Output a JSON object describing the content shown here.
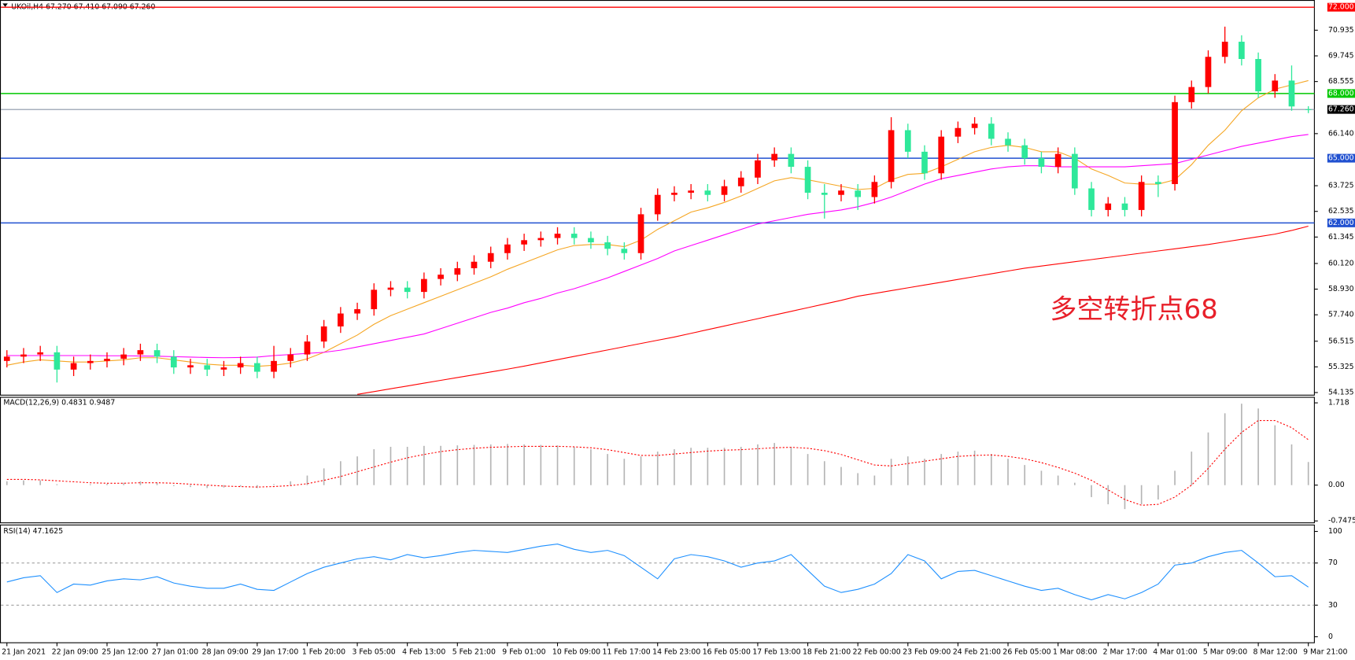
{
  "chart_data": [
    {
      "type": "candlestick",
      "title": "UKOil,H4  67.270 67.410 67.090 67.260",
      "categories": [
        "21 Jan 2021",
        null,
        null,
        "22 Jan 09:00",
        null,
        null,
        "25 Jan 12:00",
        null,
        null,
        "27 Jan 01:00",
        null,
        null,
        "28 Jan 09:00",
        null,
        null,
        "29 Jan 17:00",
        null,
        null,
        "1 Feb 20:00",
        null,
        null,
        "3 Feb 05:00",
        null,
        null,
        "4 Feb 13:00",
        null,
        null,
        "5 Feb 21:00",
        null,
        null,
        "9 Feb 01:00",
        null,
        null,
        "10 Feb 09:00",
        null,
        null,
        "11 Feb 17:00",
        null,
        null,
        "14 Feb 23:00",
        null,
        null,
        "16 Feb 05:00",
        null,
        null,
        "17 Feb 13:00",
        null,
        null,
        "18 Feb 21:00",
        null,
        null,
        "22 Feb 00:00",
        null,
        null,
        "23 Feb 09:00",
        null,
        null,
        "24 Feb 21:00",
        null,
        null,
        "26 Feb 05:00",
        null,
        null,
        "1 Mar 08:00",
        null,
        null,
        "2 Mar 17:00",
        null,
        null,
        "4 Mar 01:00",
        null,
        null,
        "5 Mar 09:00",
        null,
        null,
        "8 Mar 12:00",
        null,
        null,
        "9 Mar 21:00"
      ],
      "open": [
        55.6,
        55.8,
        55.9,
        56.0,
        55.2,
        55.5,
        55.6,
        55.7,
        55.9,
        56.1,
        55.8,
        55.3,
        55.4,
        55.2,
        55.3,
        55.5,
        55.1,
        55.6,
        55.9,
        56.5,
        57.2,
        57.8,
        58.0,
        58.9,
        59.0,
        58.8,
        59.4,
        59.6,
        59.9,
        60.2,
        60.6,
        61.0,
        61.2,
        61.3,
        61.5,
        61.3,
        61.1,
        60.8,
        60.6,
        62.4,
        63.3,
        63.4,
        63.5,
        63.3,
        63.7,
        64.1,
        64.9,
        65.2,
        64.6,
        63.4,
        63.3,
        63.5,
        63.2,
        63.9,
        66.3,
        65.3,
        64.3,
        66.0,
        66.4,
        66.6,
        65.9,
        65.6,
        65.0,
        64.6,
        65.2,
        63.6,
        62.6,
        62.9,
        62.6,
        63.9,
        63.8,
        67.6,
        68.3,
        69.7,
        70.4,
        69.6,
        68.1,
        68.6,
        67.27
      ],
      "high": [
        56.1,
        56.2,
        56.3,
        56.3,
        55.8,
        55.9,
        56.0,
        56.2,
        56.4,
        56.4,
        56.1,
        55.7,
        55.7,
        55.6,
        55.8,
        55.8,
        56.3,
        56.2,
        56.8,
        57.5,
        58.1,
        58.3,
        59.2,
        59.3,
        59.3,
        59.7,
        59.9,
        60.2,
        60.5,
        60.9,
        61.3,
        61.5,
        61.6,
        61.8,
        61.8,
        61.6,
        61.4,
        61.1,
        62.7,
        63.6,
        63.7,
        63.8,
        63.8,
        64.0,
        64.4,
        65.2,
        65.5,
        65.5,
        64.9,
        63.8,
        63.8,
        63.8,
        64.2,
        66.9,
        66.6,
        65.6,
        66.3,
        66.7,
        66.9,
        66.9,
        66.2,
        65.9,
        65.3,
        65.5,
        65.5,
        63.9,
        63.2,
        63.2,
        64.2,
        64.2,
        67.9,
        68.6,
        70.0,
        71.1,
        70.7,
        69.9,
        68.9,
        69.3,
        67.41
      ],
      "low": [
        55.3,
        55.5,
        55.6,
        54.6,
        54.9,
        55.2,
        55.3,
        55.4,
        55.6,
        55.5,
        55.0,
        55.0,
        54.9,
        54.9,
        55.0,
        54.8,
        54.8,
        55.3,
        55.6,
        56.2,
        56.9,
        57.5,
        57.7,
        58.6,
        58.5,
        58.5,
        59.1,
        59.3,
        59.6,
        59.9,
        60.3,
        60.7,
        60.9,
        61.0,
        61.0,
        60.8,
        60.5,
        60.3,
        60.3,
        62.1,
        63.0,
        63.1,
        63.0,
        63.0,
        63.4,
        63.8,
        64.6,
        64.3,
        63.1,
        62.2,
        63.0,
        62.6,
        62.9,
        63.6,
        65.0,
        64.0,
        64.0,
        65.7,
        66.1,
        65.6,
        65.3,
        64.7,
        64.3,
        64.3,
        63.3,
        62.3,
        62.3,
        62.3,
        62.3,
        63.2,
        63.5,
        67.3,
        68.0,
        69.4,
        69.3,
        67.8,
        67.8,
        67.2,
        67.09
      ],
      "close": [
        55.8,
        55.9,
        56.0,
        55.2,
        55.5,
        55.6,
        55.7,
        55.9,
        56.1,
        55.8,
        55.3,
        55.4,
        55.2,
        55.3,
        55.5,
        55.1,
        55.6,
        55.9,
        56.5,
        57.2,
        57.8,
        58.0,
        58.9,
        59.0,
        58.8,
        59.4,
        59.6,
        59.9,
        60.2,
        60.6,
        61.0,
        61.2,
        61.3,
        61.5,
        61.3,
        61.1,
        60.8,
        60.6,
        62.4,
        63.3,
        63.4,
        63.5,
        63.3,
        63.7,
        64.1,
        64.9,
        65.2,
        64.6,
        63.4,
        63.3,
        63.5,
        63.2,
        63.9,
        66.3,
        65.3,
        64.3,
        66.0,
        66.4,
        66.6,
        65.9,
        65.6,
        65.0,
        64.6,
        65.2,
        63.6,
        62.6,
        62.9,
        62.6,
        63.9,
        63.8,
        67.6,
        68.3,
        69.7,
        70.4,
        69.6,
        68.1,
        68.6,
        67.4,
        67.26
      ],
      "up_color": "#ff0000",
      "down_color": "#2ee89a",
      "series": [
        {
          "type": "line",
          "color": "#f5a623",
          "values": [
            55.4,
            55.55,
            55.65,
            55.6,
            55.55,
            55.55,
            55.6,
            55.65,
            55.75,
            55.75,
            55.65,
            55.55,
            55.45,
            55.4,
            55.4,
            55.35,
            55.4,
            55.5,
            55.7,
            56.0,
            56.4,
            56.8,
            57.3,
            57.7,
            58.0,
            58.3,
            58.6,
            58.9,
            59.2,
            59.5,
            59.85,
            60.15,
            60.45,
            60.75,
            60.95,
            61.0,
            61.0,
            60.9,
            61.2,
            61.7,
            62.1,
            62.5,
            62.7,
            62.95,
            63.25,
            63.6,
            63.95,
            64.1,
            64.0,
            63.85,
            63.7,
            63.55,
            63.6,
            64.0,
            64.25,
            64.3,
            64.6,
            64.95,
            65.3,
            65.5,
            65.6,
            65.5,
            65.3,
            65.3,
            65.0,
            64.5,
            64.2,
            63.85,
            63.8,
            63.8,
            64.0,
            64.7,
            65.6,
            66.3,
            67.2,
            67.8,
            68.2,
            68.4,
            68.6
          ]
        },
        {
          "type": "line",
          "color": "#ff00ff",
          "values": [
            55.85,
            55.85,
            55.85,
            55.85,
            55.85,
            55.85,
            55.84,
            55.84,
            55.83,
            55.82,
            55.8,
            55.78,
            55.76,
            55.75,
            55.76,
            55.78,
            55.85,
            55.9,
            55.95,
            56.0,
            56.1,
            56.25,
            56.4,
            56.55,
            56.7,
            56.85,
            57.1,
            57.35,
            57.6,
            57.85,
            58.05,
            58.3,
            58.5,
            58.75,
            58.95,
            59.2,
            59.45,
            59.75,
            60.05,
            60.35,
            60.7,
            60.95,
            61.2,
            61.45,
            61.7,
            61.95,
            62.1,
            62.25,
            62.4,
            62.5,
            62.6,
            62.75,
            62.95,
            63.2,
            63.5,
            63.8,
            64.05,
            64.2,
            64.35,
            64.5,
            64.6,
            64.65,
            64.65,
            64.6,
            64.6,
            64.6,
            64.6,
            64.6,
            64.65,
            64.7,
            64.75,
            64.95,
            65.15,
            65.35,
            65.55,
            65.7,
            65.85,
            66.0,
            66.1
          ]
        },
        {
          "type": "line",
          "color": "#ff0000",
          "values": [
            null,
            null,
            null,
            null,
            null,
            null,
            null,
            null,
            null,
            null,
            null,
            null,
            null,
            null,
            null,
            null,
            null,
            null,
            null,
            null,
            null,
            54.05,
            54.18,
            54.31,
            54.44,
            54.57,
            54.7,
            54.83,
            54.96,
            55.09,
            55.22,
            55.36,
            55.51,
            55.66,
            55.81,
            55.96,
            56.11,
            56.26,
            56.41,
            56.56,
            56.71,
            56.88,
            57.05,
            57.22,
            57.39,
            57.56,
            57.73,
            57.9,
            58.07,
            58.24,
            58.41,
            58.6,
            58.73,
            58.86,
            58.99,
            59.12,
            59.25,
            59.38,
            59.51,
            59.64,
            59.77,
            59.9,
            60.0,
            60.1,
            60.2,
            60.3,
            60.4,
            60.5,
            60.6,
            60.7,
            60.8,
            60.9,
            61.0,
            61.12,
            61.24,
            61.36,
            61.48,
            61.65,
            61.85
          ]
        }
      ],
      "ylim": [
        54.015,
        72.255
      ],
      "yticks": [
        70.935,
        69.745,
        68.555,
        {
          "value": 66.14,
          "label": "66.140"
        },
        63.725,
        62.535,
        61.345,
        {
          "value": 60.12,
          "label": "60.120"
        },
        {
          "value": 58.93,
          "label": "58.930"
        },
        {
          "value": 57.74,
          "label": "57.740"
        },
        56.515,
        55.325,
        54.135
      ],
      "levels": [
        {
          "value": 72,
          "label": "72.000",
          "color": "#ff0000"
        },
        {
          "value": 68,
          "label": "68.000",
          "color": "#00c800"
        },
        {
          "value": 65,
          "label": "65.000",
          "color": "#2050d0"
        },
        {
          "value": 62,
          "label": "62.000",
          "color": "#2050d0"
        }
      ],
      "last_price": {
        "value": 67.26,
        "label": "67.260"
      },
      "annotation": {
        "text": "多空转折点68",
        "color": "#e8202a"
      }
    },
    {
      "type": "macd",
      "title": "MACD(12,26,9) 0.4831 0.9487",
      "series": [
        {
          "type": "bar",
          "color": "#b4b4b4",
          "values": [
            0.08,
            0.1,
            0.1,
            0.02,
            0.0,
            0.02,
            0.03,
            0.05,
            0.08,
            0.05,
            -0.02,
            -0.04,
            -0.06,
            -0.05,
            -0.03,
            -0.06,
            0.02,
            0.08,
            0.2,
            0.35,
            0.5,
            0.6,
            0.75,
            0.8,
            0.8,
            0.82,
            0.82,
            0.83,
            0.84,
            0.85,
            0.86,
            0.85,
            0.84,
            0.83,
            0.8,
            0.75,
            0.65,
            0.55,
            0.6,
            0.7,
            0.75,
            0.78,
            0.78,
            0.78,
            0.8,
            0.85,
            0.88,
            0.8,
            0.65,
            0.5,
            0.38,
            0.25,
            0.2,
            0.55,
            0.6,
            0.55,
            0.65,
            0.7,
            0.72,
            0.65,
            0.55,
            0.42,
            0.3,
            0.2,
            0.05,
            -0.25,
            -0.4,
            -0.5,
            -0.4,
            -0.3,
            0.3,
            0.7,
            1.1,
            1.5,
            1.7,
            1.6,
            1.25,
            0.85,
            0.4831
          ]
        },
        {
          "type": "line",
          "color": "#ff0000",
          "dashed": true,
          "values": [
            0.12,
            0.12,
            0.11,
            0.09,
            0.07,
            0.05,
            0.04,
            0.04,
            0.05,
            0.05,
            0.04,
            0.02,
            0.0,
            -0.02,
            -0.03,
            -0.04,
            -0.03,
            -0.01,
            0.03,
            0.1,
            0.18,
            0.28,
            0.38,
            0.48,
            0.57,
            0.64,
            0.7,
            0.74,
            0.77,
            0.79,
            0.8,
            0.81,
            0.81,
            0.81,
            0.8,
            0.78,
            0.74,
            0.68,
            0.62,
            0.62,
            0.65,
            0.68,
            0.71,
            0.73,
            0.74,
            0.76,
            0.78,
            0.79,
            0.77,
            0.72,
            0.64,
            0.53,
            0.42,
            0.4,
            0.45,
            0.5,
            0.55,
            0.6,
            0.62,
            0.63,
            0.6,
            0.55,
            0.47,
            0.37,
            0.25,
            0.1,
            -0.1,
            -0.3,
            -0.42,
            -0.4,
            -0.25,
            0.0,
            0.35,
            0.75,
            1.1,
            1.35,
            1.35,
            1.2,
            0.9487
          ]
        }
      ],
      "ylim": [
        -0.787,
        1.825
      ],
      "yticks": [
        1.718,
        {
          "value": 0,
          "label": "0.00"
        },
        -0.7475
      ]
    },
    {
      "type": "line",
      "title": "RSI(14) 47.1625",
      "series": [
        {
          "type": "line",
          "color": "#1e90ff",
          "values": [
            52,
            56,
            58,
            42,
            50,
            49,
            53,
            55,
            54,
            57,
            51,
            48,
            46,
            46,
            50,
            45,
            44,
            52,
            60,
            66,
            70,
            74,
            76,
            73,
            78,
            75,
            77,
            80,
            82,
            81,
            80,
            83,
            86,
            88,
            83,
            80,
            82,
            77,
            66,
            55,
            74,
            78,
            76,
            72,
            66,
            70,
            72,
            78,
            63,
            48,
            42,
            45,
            50,
            60,
            78,
            72,
            55,
            62,
            63,
            58,
            53,
            48,
            44,
            46,
            40,
            35,
            40,
            36,
            42,
            50,
            68,
            70,
            76,
            80,
            82,
            70,
            57,
            58,
            47.1625
          ]
        }
      ],
      "ylim": [
        -5.7,
        105.7
      ],
      "yticks": [
        100,
        70,
        30,
        0
      ],
      "levels": [
        70,
        30
      ]
    }
  ]
}
